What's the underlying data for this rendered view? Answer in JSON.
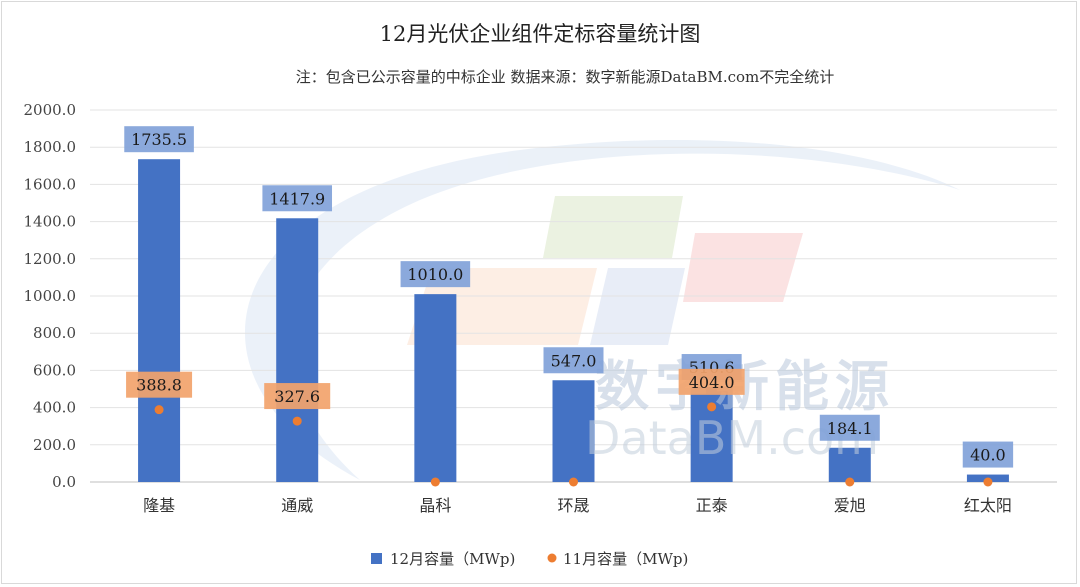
{
  "chart_data": {
    "type": "bar",
    "title": "12月光伏企业组件定标容量统计图",
    "subtitle": "注：包含已公示容量的中标企业 数据来源：数字新能源DataBM.com不完全统计",
    "categories": [
      "隆基",
      "通威",
      "晶科",
      "环晟",
      "正泰",
      "爱旭",
      "红太阳"
    ],
    "series": [
      {
        "name": "12月容量（MWp)",
        "kind": "bar",
        "color": "#4472c4",
        "values": [
          1735.5,
          1417.9,
          1010.0,
          547.0,
          510.6,
          184.1,
          40.0
        ]
      },
      {
        "name": "11月容量（MWp)",
        "kind": "point",
        "color": "#ed7d31",
        "values": [
          388.8,
          327.6,
          0,
          0,
          404.0,
          0,
          0
        ]
      }
    ],
    "data_labels": {
      "bars": [
        "1735.5",
        "1417.9",
        "1010.0",
        "547.0",
        "510.6",
        "184.1",
        "40.0"
      ],
      "points": [
        "388.8",
        "327.6",
        null,
        null,
        "404.0",
        null,
        null
      ]
    },
    "yticks": [
      "0.0",
      "200.0",
      "400.0",
      "600.0",
      "800.0",
      "1000.0",
      "1200.0",
      "1400.0",
      "1600.0",
      "1800.0",
      "2000.0"
    ],
    "ylim": [
      0,
      2000
    ],
    "grid": true,
    "legend_position": "bottom"
  },
  "watermark": {
    "cn": "数字新能源",
    "en": "DataBM.com"
  }
}
